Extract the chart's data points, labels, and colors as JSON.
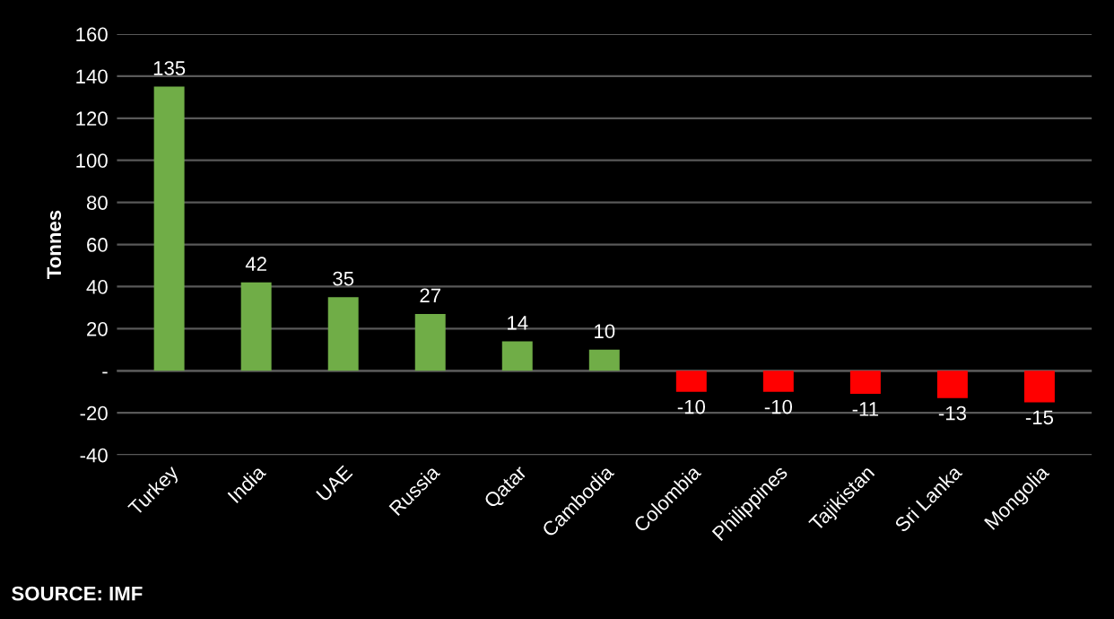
{
  "chart_data": {
    "type": "bar",
    "ylabel": "Tonnes",
    "categories": [
      "Turkey",
      "India",
      "UAE",
      "Russia",
      "Qatar",
      "Cambodia",
      "Colombia",
      "Philippines",
      "Tajikistan",
      "Sri Lanka",
      "Mongolia"
    ],
    "values": [
      135,
      42,
      35,
      27,
      14,
      10,
      -10,
      -10,
      -11,
      -13,
      -15
    ],
    "colors": [
      "#70ad47",
      "#70ad47",
      "#70ad47",
      "#70ad47",
      "#70ad47",
      "#70ad47",
      "#ff0000",
      "#ff0000",
      "#ff0000",
      "#ff0000",
      "#ff0000"
    ],
    "ylim": [
      -40,
      160
    ],
    "yticks": [
      -40,
      -20,
      {
        "value": 0,
        "label": "-"
      },
      20,
      40,
      60,
      80,
      100,
      120,
      140,
      160
    ],
    "grid": "y",
    "data_labels": true,
    "annotations": [
      "SOURCE: IMF"
    ]
  }
}
